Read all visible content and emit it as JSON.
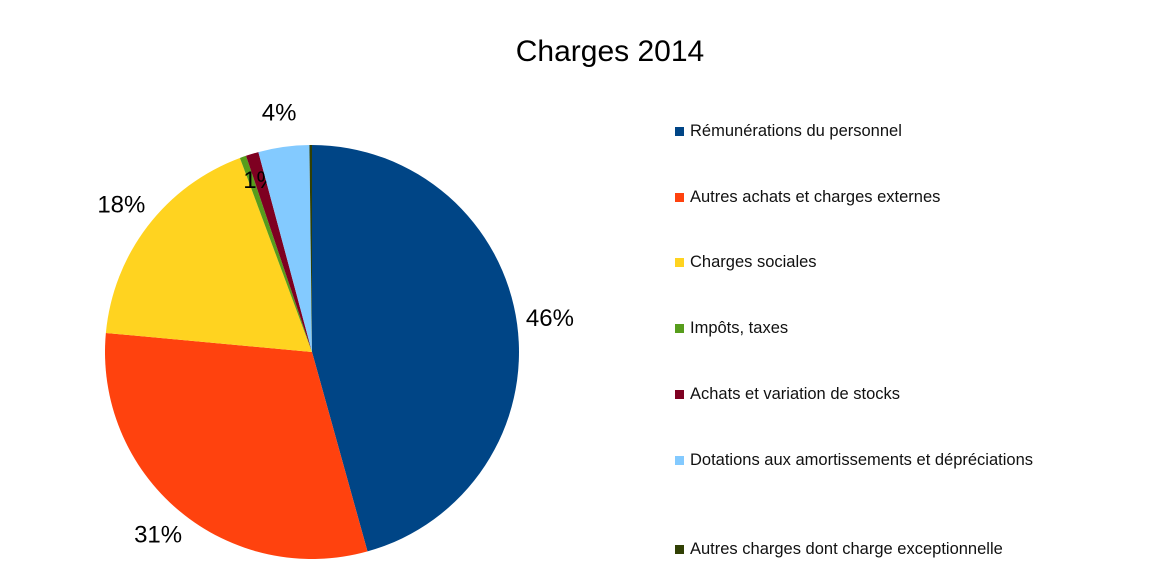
{
  "chart_data": {
    "type": "pie",
    "title": "Charges 2014",
    "categories": [
      "Rémunérations du personnel",
      "Autres achats et charges externes",
      "Charges sociales",
      "Impôts, taxes",
      "Achats et variation de stocks",
      "Dotations aux amortissements et dépré­cia­tions",
      "Autres charges dont charge exceptionnelle"
    ],
    "values": [
      46,
      31,
      18,
      0.5,
      1,
      4,
      0.2
    ],
    "value_labels": [
      "46%",
      "31%",
      "18%",
      null,
      "1%",
      "4%",
      null
    ],
    "colors": [
      "#004586",
      "#ff420e",
      "#ffd320",
      "#579d1c",
      "#7e0021",
      "#83caff",
      "#314004"
    ],
    "legend": "right"
  }
}
